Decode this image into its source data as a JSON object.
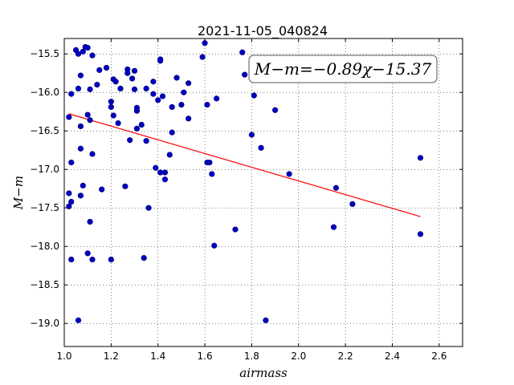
{
  "chart_data": {
    "type": "scatter",
    "title": "2021-11-05_040824",
    "xlabel": "airmass",
    "ylabel": "M−m",
    "xlim": [
      1.0,
      2.7
    ],
    "ylim": [
      -19.3,
      -15.3
    ],
    "y_inverted": true,
    "xticks": [
      1.0,
      1.2,
      1.4,
      1.6,
      1.8,
      2.0,
      2.2,
      2.4,
      2.6
    ],
    "xtick_labels": [
      "1.0",
      "1.2",
      "1.4",
      "1.6",
      "1.8",
      "2.0",
      "2.2",
      "2.4",
      "2.6"
    ],
    "yticks": [
      -15.5,
      -16.0,
      -16.5,
      -17.0,
      -17.5,
      -18.0,
      -18.5,
      -19.0
    ],
    "ytick_labels": [
      "−15.5",
      "−16.0",
      "−16.5",
      "−17.0",
      "−17.5",
      "−18.0",
      "−18.5",
      "−19.0"
    ],
    "grid": true,
    "annotation": "M−m=−0.89χ−15.37",
    "fit": {
      "slope": -0.89,
      "intercept": -15.37,
      "x_range": [
        1.02,
        2.52
      ],
      "color": "#ff0000"
    },
    "point_color": "#0000bf",
    "points": [
      [
        1.02,
        -16.32
      ],
      [
        1.02,
        -17.31
      ],
      [
        1.02,
        -17.48
      ],
      [
        1.03,
        -16.02
      ],
      [
        1.03,
        -16.91
      ],
      [
        1.03,
        -17.42
      ],
      [
        1.03,
        -18.17
      ],
      [
        1.05,
        -15.45
      ],
      [
        1.06,
        -15.5
      ],
      [
        1.06,
        -15.95
      ],
      [
        1.06,
        -18.96
      ],
      [
        1.07,
        -15.78
      ],
      [
        1.07,
        -16.44
      ],
      [
        1.07,
        -16.73
      ],
      [
        1.07,
        -17.34
      ],
      [
        1.08,
        -15.47
      ],
      [
        1.08,
        -17.21
      ],
      [
        1.09,
        -15.41
      ],
      [
        1.1,
        -15.42
      ],
      [
        1.1,
        -16.29
      ],
      [
        1.1,
        -18.09
      ],
      [
        1.11,
        -15.96
      ],
      [
        1.11,
        -16.36
      ],
      [
        1.11,
        -17.68
      ],
      [
        1.12,
        -15.52
      ],
      [
        1.12,
        -16.8
      ],
      [
        1.12,
        -18.17
      ],
      [
        1.14,
        -15.9
      ],
      [
        1.15,
        -15.71
      ],
      [
        1.16,
        -17.26
      ],
      [
        1.18,
        -15.68
      ],
      [
        1.2,
        -16.12
      ],
      [
        1.2,
        -16.19
      ],
      [
        1.2,
        -18.17
      ],
      [
        1.21,
        -16.3
      ],
      [
        1.21,
        -15.83
      ],
      [
        1.22,
        -15.86
      ],
      [
        1.23,
        -16.4
      ],
      [
        1.24,
        -15.95
      ],
      [
        1.26,
        -17.22
      ],
      [
        1.27,
        -15.7
      ],
      [
        1.27,
        -15.75
      ],
      [
        1.28,
        -16.62
      ],
      [
        1.29,
        -15.82
      ],
      [
        1.3,
        -15.72
      ],
      [
        1.3,
        -15.96
      ],
      [
        1.31,
        -16.2
      ],
      [
        1.31,
        -16.24
      ],
      [
        1.31,
        -16.47
      ],
      [
        1.33,
        -16.42
      ],
      [
        1.34,
        -18.15
      ],
      [
        1.35,
        -15.95
      ],
      [
        1.35,
        -16.63
      ],
      [
        1.36,
        -17.5
      ],
      [
        1.38,
        -15.86
      ],
      [
        1.38,
        -16.02
      ],
      [
        1.39,
        -16.98
      ],
      [
        1.4,
        -16.1
      ],
      [
        1.41,
        -15.57
      ],
      [
        1.41,
        -15.59
      ],
      [
        1.41,
        -17.04
      ],
      [
        1.42,
        -16.05
      ],
      [
        1.43,
        -17.04
      ],
      [
        1.43,
        -17.13
      ],
      [
        1.45,
        -16.81
      ],
      [
        1.46,
        -16.52
      ],
      [
        1.46,
        -16.19
      ],
      [
        1.48,
        -15.81
      ],
      [
        1.5,
        -16.16
      ],
      [
        1.51,
        -16.0
      ],
      [
        1.53,
        -15.88
      ],
      [
        1.53,
        -16.34
      ],
      [
        1.59,
        -15.54
      ],
      [
        1.6,
        -15.36
      ],
      [
        1.61,
        -16.16
      ],
      [
        1.61,
        -16.91
      ],
      [
        1.62,
        -16.91
      ],
      [
        1.63,
        -17.06
      ],
      [
        1.64,
        -17.99
      ],
      [
        1.65,
        -16.08
      ],
      [
        1.73,
        -17.78
      ],
      [
        1.76,
        -15.48
      ],
      [
        1.77,
        -15.77
      ],
      [
        1.8,
        -16.55
      ],
      [
        1.81,
        -16.04
      ],
      [
        1.84,
        -16.72
      ],
      [
        1.86,
        -18.96
      ],
      [
        1.9,
        -16.23
      ],
      [
        1.96,
        -17.06
      ],
      [
        2.15,
        -17.75
      ],
      [
        2.16,
        -17.24
      ],
      [
        2.23,
        -17.45
      ],
      [
        2.52,
        -16.85
      ],
      [
        2.52,
        -17.84
      ]
    ]
  }
}
